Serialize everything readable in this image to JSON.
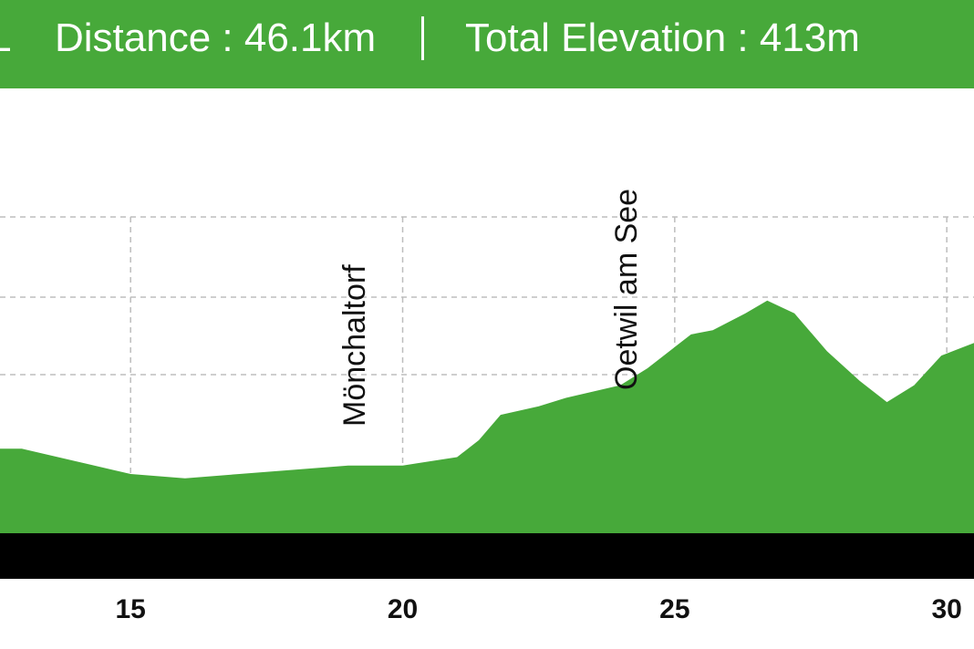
{
  "header": {
    "partial_text": "L",
    "distance": "Distance : 46.1km",
    "separator": "|",
    "elevation": "Total Elevation : 413m"
  },
  "colors": {
    "header": "#47a93a",
    "area": "#47a93a",
    "baseline": "#000000",
    "grid": "#bdbdbd"
  },
  "chart_data": {
    "type": "area",
    "title": "",
    "xlabel": "",
    "ylabel": "",
    "x_unit": "km",
    "xlim": [
      12.6,
      30.5
    ],
    "x_ticks": [
      15,
      20,
      25,
      30
    ],
    "x_tick_labels": [
      "15",
      "20",
      "25",
      "30"
    ],
    "grid": true,
    "annotations": [
      {
        "label": "Mönchaltorf",
        "x": 19.1
      },
      {
        "label": "Oetwil am See",
        "x": 24.1
      }
    ],
    "series": [
      {
        "values_relative": true,
        "x": [
          12.6,
          13.0,
          14.0,
          15.0,
          16.0,
          17.0,
          18.0,
          19.0,
          20.0,
          21.0,
          21.4,
          21.8,
          22.5,
          23.0,
          24.0,
          24.5,
          25.0,
          25.3,
          25.7,
          26.3,
          26.7,
          27.2,
          27.8,
          28.4,
          28.9,
          29.4,
          29.9,
          30.5
        ],
        "y": [
          0.2,
          0.2,
          0.17,
          0.14,
          0.13,
          0.14,
          0.15,
          0.16,
          0.16,
          0.18,
          0.22,
          0.28,
          0.3,
          0.32,
          0.35,
          0.39,
          0.44,
          0.47,
          0.48,
          0.52,
          0.55,
          0.52,
          0.43,
          0.36,
          0.31,
          0.35,
          0.42,
          0.45
        ]
      }
    ]
  }
}
